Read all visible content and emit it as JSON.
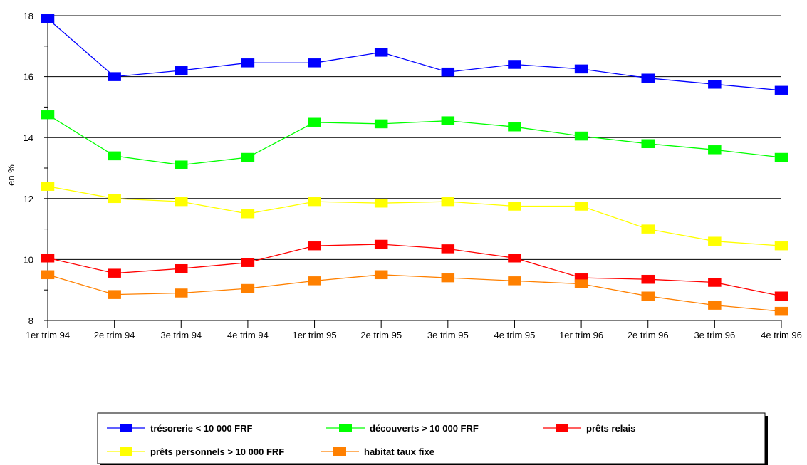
{
  "chart_data": {
    "type": "line",
    "title": "",
    "xlabel": "",
    "ylabel": "en %",
    "ylim": [
      8,
      18
    ],
    "yticks": [
      8,
      10,
      12,
      14,
      16,
      18
    ],
    "grid": "horizontal major gridlines",
    "legend_position": "bottom",
    "categories": [
      "1er trim 94",
      "2e trim 94",
      "3e trim 94",
      "4e trim 94",
      "1er trim 95",
      "2e trim 95",
      "3e trim 95",
      "4e trim 95",
      "1er trim 96",
      "2e trim 96",
      "3e trim 96",
      "4e trim 96"
    ],
    "series": [
      {
        "name": "trésorerie < 10 000  FRF",
        "color": "#0000ff",
        "values": [
          17.9,
          16.0,
          16.2,
          16.45,
          16.45,
          16.8,
          16.15,
          16.4,
          16.25,
          15.95,
          15.75,
          15.55
        ]
      },
      {
        "name": "découverts > 10 000 FRF",
        "color": "#00ff00",
        "values": [
          14.75,
          13.4,
          13.1,
          13.35,
          14.5,
          14.45,
          14.55,
          14.35,
          14.05,
          13.8,
          13.6,
          13.35
        ]
      },
      {
        "name": "prêts relais",
        "color": "#ff0000",
        "values": [
          10.05,
          9.55,
          9.7,
          9.9,
          10.45,
          10.5,
          10.35,
          10.05,
          9.4,
          9.35,
          9.25,
          8.8
        ]
      },
      {
        "name": "prêts personnels > 10 000 FRF",
        "color": "#ffff00",
        "values": [
          12.4,
          12.0,
          11.9,
          11.5,
          11.9,
          11.85,
          11.9,
          11.75,
          11.75,
          11.0,
          10.6,
          10.45
        ]
      },
      {
        "name": "habitat taux fixe",
        "color": "#ff8000",
        "values": [
          9.5,
          8.85,
          8.9,
          9.05,
          9.3,
          9.5,
          9.4,
          9.3,
          9.2,
          8.8,
          8.5,
          8.3
        ]
      }
    ]
  }
}
